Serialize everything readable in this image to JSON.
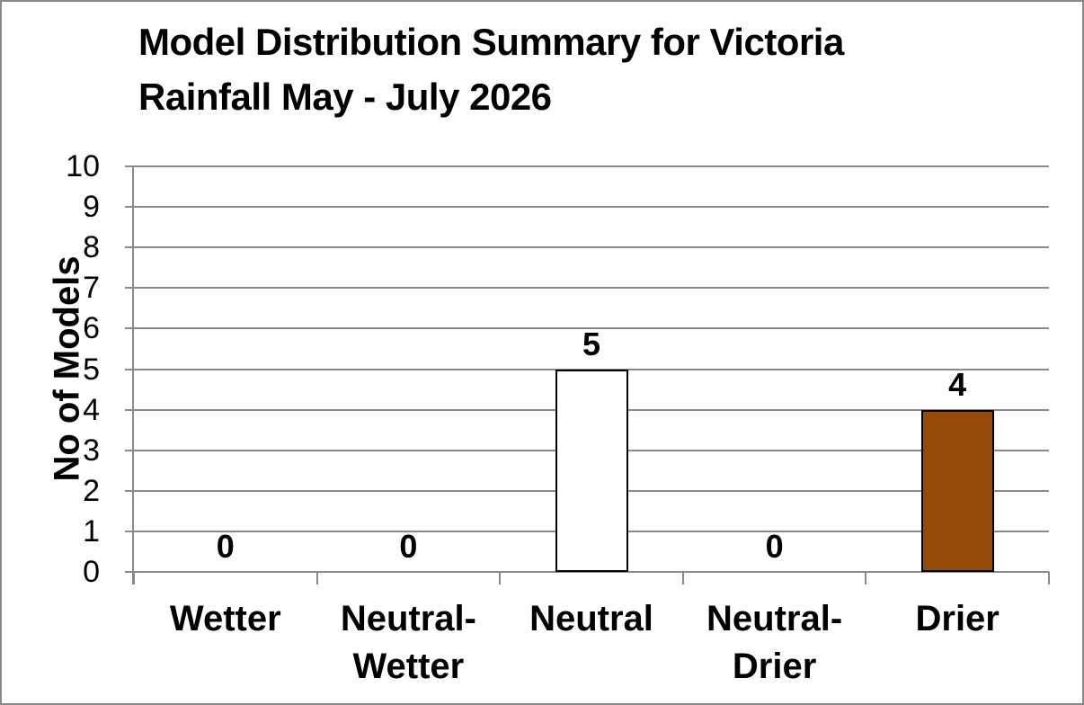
{
  "window": {
    "background": "#FFFFFF",
    "frame_border_color": "#898989"
  },
  "chart_data": {
    "type": "bar",
    "title": "Model Distribution Summary for Victoria Rainfall May - July 2026",
    "title_lines": [
      "Model Distribution Summary for Victoria",
      "Rainfall May - July 2026"
    ],
    "xlabel": "",
    "ylabel": "No of Models",
    "categories": [
      "Wetter",
      "Neutral-Wetter",
      "Neutral",
      "Neutral-Drier",
      "Drier"
    ],
    "category_label_lines": [
      [
        "Wetter"
      ],
      [
        "Neutral-",
        "Wetter"
      ],
      [
        "Neutral"
      ],
      [
        "Neutral-",
        "Drier"
      ],
      [
        "Drier"
      ]
    ],
    "values": [
      0,
      0,
      5,
      0,
      4
    ],
    "data_labels": [
      "0",
      "0",
      "5",
      "0",
      "4"
    ],
    "bar_fill_colors": [
      "#FFFFFF",
      "#FFFFFF",
      "#FFFFFF",
      "#FFFFFF",
      "#964A07"
    ],
    "bar_border_color": "#000000",
    "ylim": [
      0,
      10
    ],
    "yticks": [
      0,
      1,
      2,
      3,
      4,
      5,
      6,
      7,
      8,
      9,
      10
    ],
    "grid": true,
    "gridline_color": "#8A8A8A",
    "axis_color": "#8A8A8A",
    "text_color": "#000000",
    "legend": "none"
  }
}
